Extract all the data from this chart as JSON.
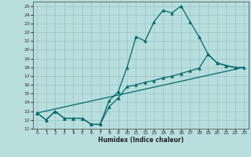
{
  "title": "",
  "xlabel": "Humidex (Indice chaleur)",
  "xlim": [
    -0.5,
    23.5
  ],
  "ylim": [
    11,
    25.5
  ],
  "xticks": [
    0,
    1,
    2,
    3,
    4,
    5,
    6,
    7,
    8,
    9,
    10,
    11,
    12,
    13,
    14,
    15,
    16,
    17,
    18,
    19,
    20,
    21,
    22,
    23
  ],
  "yticks": [
    11,
    12,
    13,
    14,
    15,
    16,
    17,
    18,
    19,
    20,
    21,
    22,
    23,
    24,
    25
  ],
  "background_color": "#b8dede",
  "grid_color": "#8fbfbf",
  "line_color": "#006868",
  "line1_x": [
    0,
    1,
    2,
    3,
    4,
    5,
    6,
    7,
    8,
    9,
    10,
    11,
    12,
    13,
    14,
    15,
    16,
    17,
    18,
    19,
    20,
    21,
    22
  ],
  "line1_y": [
    12.8,
    12.0,
    13.0,
    12.2,
    12.2,
    12.2,
    11.5,
    11.5,
    14.2,
    15.2,
    18.0,
    21.5,
    21.0,
    23.2,
    24.5,
    24.2,
    25.0,
    23.2,
    21.5,
    19.5,
    18.5,
    18.2,
    18.0
  ],
  "line2_x": [
    0,
    1,
    2,
    3,
    4,
    5,
    6,
    7,
    8,
    9,
    10,
    11,
    12,
    13,
    14,
    15,
    16,
    17,
    18,
    19,
    20,
    21,
    22,
    23
  ],
  "line2_y": [
    12.8,
    12.0,
    13.0,
    12.2,
    12.2,
    12.2,
    11.5,
    11.5,
    13.5,
    14.5,
    15.8,
    16.0,
    16.3,
    16.5,
    16.8,
    17.0,
    17.3,
    17.6,
    17.9,
    19.5,
    18.5,
    18.2,
    18.0,
    18.0
  ],
  "line3_x": [
    0,
    23
  ],
  "line3_y": [
    12.8,
    18.0
  ],
  "markersize": 2.5,
  "linewidth": 0.9
}
